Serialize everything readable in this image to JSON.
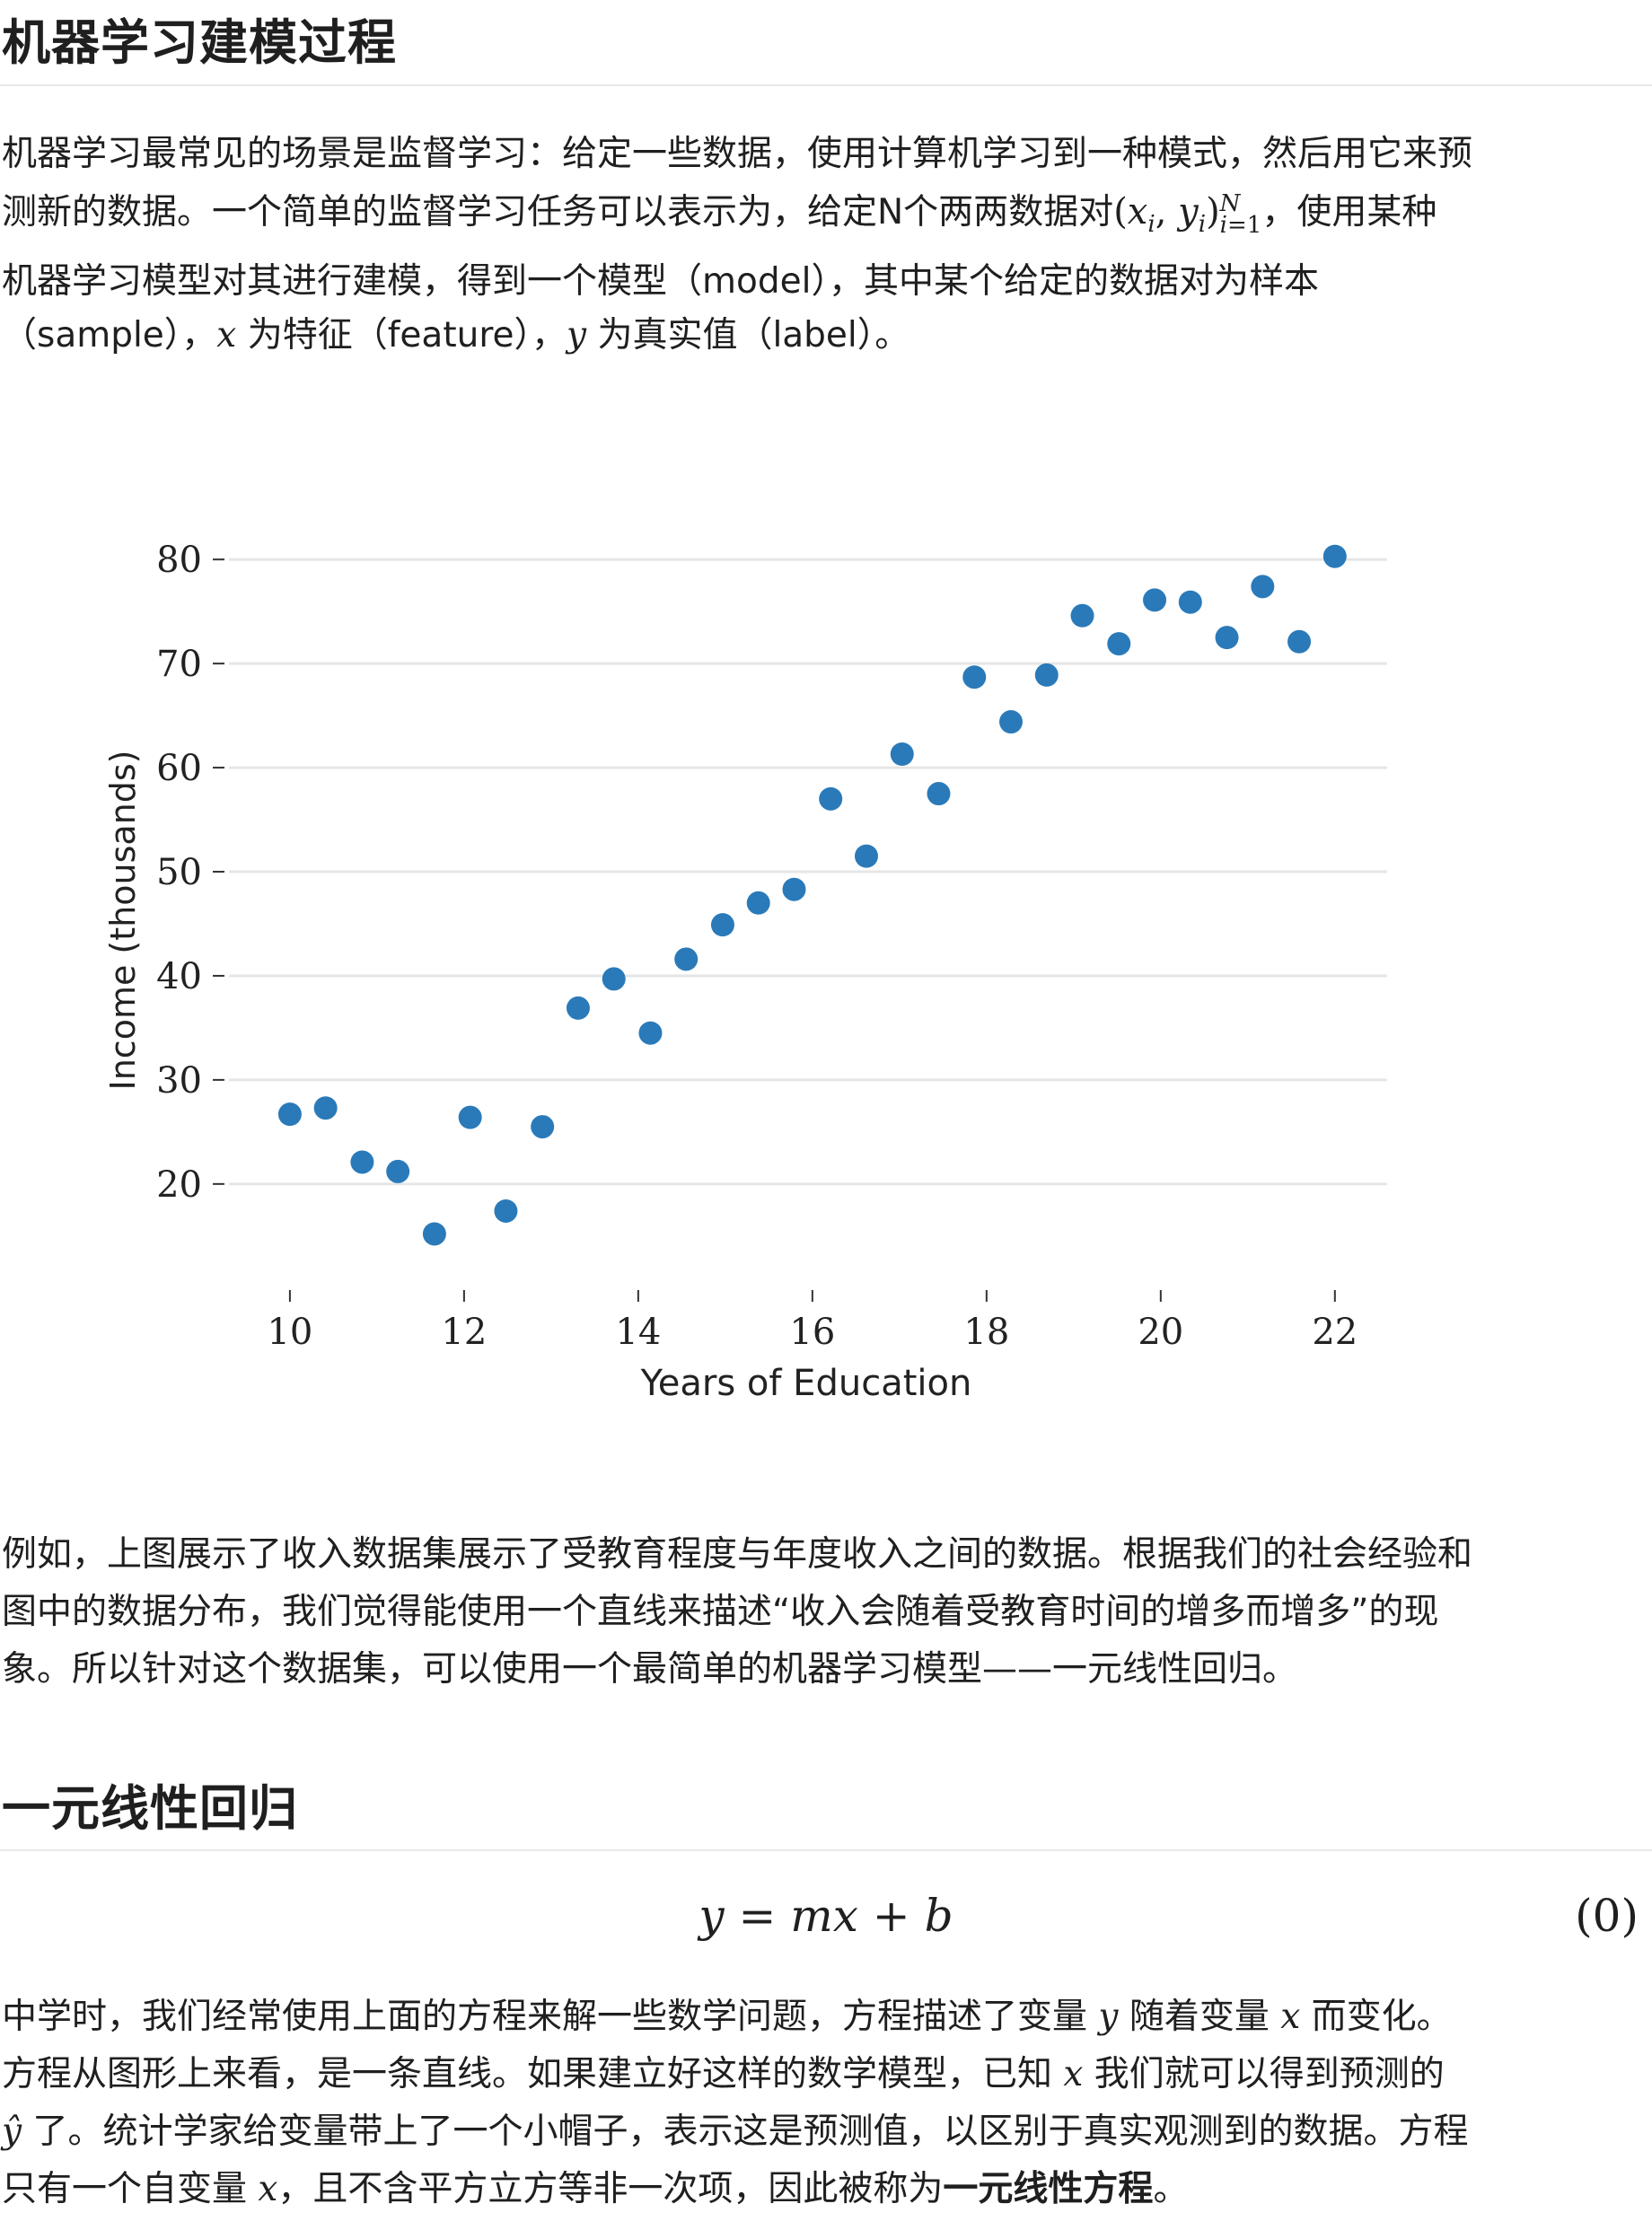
{
  "title": "机器学习建模过程",
  "intro": {
    "line1": "机器学习最常见的场景是监督学习：给定一些数据，使用计算机学习到一种模式，然后用它来预",
    "line2_a": "测新的数据。一个简单的监督学习任务可以表示为，给定N个两两数据对",
    "line2_math": "(x_i, y_i)_{i=1}^N",
    "line2_b": "，使用某种",
    "line3": "机器学习模型对其进行建模，得到一个模型（model），其中某个给定的数据对为样本",
    "line4_a": "（sample），",
    "line4_x": "x",
    "line4_b": " 为特征（feature），",
    "line4_y": "y",
    "line4_c": " 为真实值（label）。"
  },
  "chart_data": {
    "type": "scatter",
    "xlabel": "Years of Education",
    "ylabel": "Income (thousands)",
    "xlim": [
      9.3,
      22.6
    ],
    "ylim": [
      13,
      82
    ],
    "x_ticks": [
      10,
      12,
      14,
      16,
      18,
      20,
      22
    ],
    "y_ticks": [
      20,
      30,
      40,
      50,
      60,
      70,
      80
    ],
    "grid": "horizontal",
    "color": "#2a7ab9",
    "points": [
      {
        "x": 10.0,
        "y": 26.7
      },
      {
        "x": 10.41,
        "y": 27.3
      },
      {
        "x": 10.83,
        "y": 22.1
      },
      {
        "x": 11.24,
        "y": 21.2
      },
      {
        "x": 11.66,
        "y": 15.2
      },
      {
        "x": 12.07,
        "y": 26.4
      },
      {
        "x": 12.48,
        "y": 17.4
      },
      {
        "x": 12.9,
        "y": 25.5
      },
      {
        "x": 13.31,
        "y": 36.9
      },
      {
        "x": 13.72,
        "y": 39.7
      },
      {
        "x": 14.14,
        "y": 34.5
      },
      {
        "x": 14.55,
        "y": 41.6
      },
      {
        "x": 14.97,
        "y": 44.9
      },
      {
        "x": 15.38,
        "y": 47.0
      },
      {
        "x": 15.79,
        "y": 48.3
      },
      {
        "x": 16.21,
        "y": 57.0
      },
      {
        "x": 16.62,
        "y": 51.5
      },
      {
        "x": 17.03,
        "y": 61.3
      },
      {
        "x": 17.45,
        "y": 57.5
      },
      {
        "x": 17.86,
        "y": 68.7
      },
      {
        "x": 18.28,
        "y": 64.4
      },
      {
        "x": 18.69,
        "y": 68.9
      },
      {
        "x": 19.1,
        "y": 74.6
      },
      {
        "x": 19.52,
        "y": 71.9
      },
      {
        "x": 19.93,
        "y": 76.1
      },
      {
        "x": 20.34,
        "y": 75.9
      },
      {
        "x": 20.76,
        "y": 72.5
      },
      {
        "x": 21.17,
        "y": 77.4
      },
      {
        "x": 21.59,
        "y": 72.1
      },
      {
        "x": 22.0,
        "y": 80.3
      }
    ]
  },
  "para2": {
    "line1": "例如，上图展示了收入数据集展示了受教育程度与年度收入之间的数据。根据我们的社会经验和",
    "line2": "图中的数据分布，我们觉得能使用一个直线来描述“收入会随着受教育时间的增多而增多”的现",
    "line3": "象。所以针对这个数据集，可以使用一个最简单的机器学习模型——一元线性回归。"
  },
  "section2_title": "一元线性回归",
  "equation": {
    "body": "y = mx + b",
    "number": "(0)"
  },
  "para3": {
    "line1_a": "中学时，我们经常使用上面的方程来解一些数学问题，方程描述了变量 ",
    "line1_y": "y",
    "line1_b": " 随着变量 ",
    "line1_x": "x",
    "line1_c": " 而变化。",
    "line2_a": "方程从图形上来看，是一条直线。如果建立好这样的数学模型，已知 ",
    "line2_x": "x",
    "line2_b": " 我们就可以得到预测的",
    "line3_yhat": "ŷ",
    "line3_b": " 了。统计学家给变量带上了一个小帽子，表示这是预测值，以区别于真实观测到的数据。方程",
    "line4_a": "只有一个自变量 ",
    "line4_x": "x",
    "line4_b": "，且不含平方立方等非一次项，因此被称为",
    "line4_bold": "一元线性方程",
    "line4_c": "。"
  }
}
